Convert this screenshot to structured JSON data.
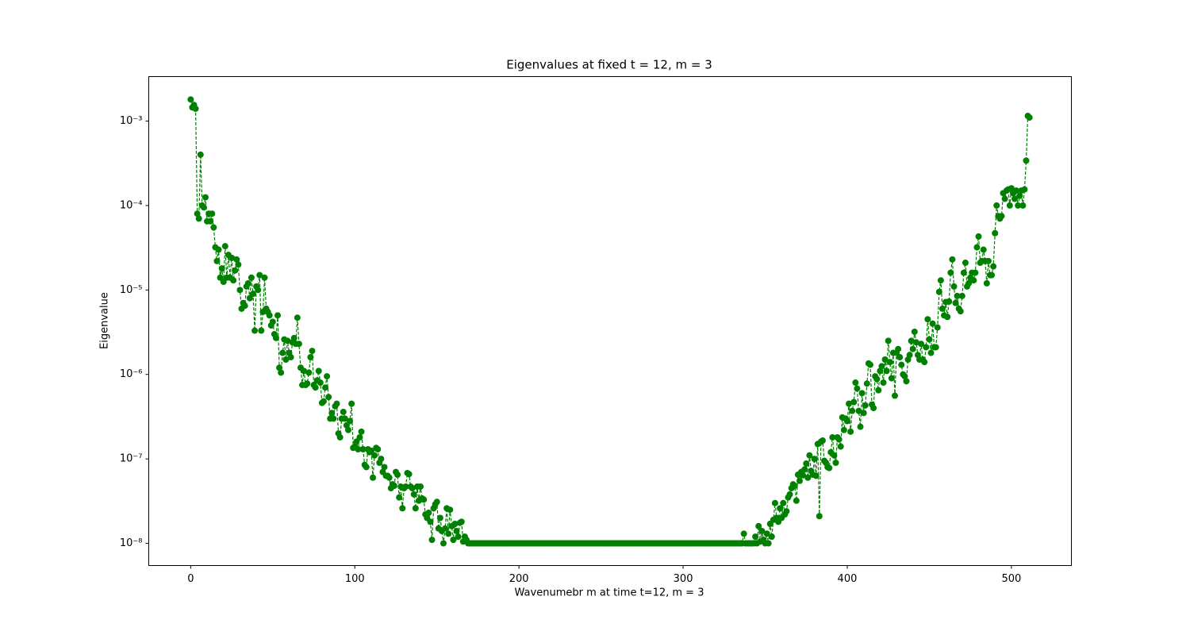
{
  "chart_data": {
    "type": "line",
    "title": "Eigenvalues at fixed t = 12, m = 3",
    "x_label": "Wavenumebr m at time t=12, m = 3",
    "y_label": "Eigenvalue",
    "y_scale": "log",
    "color": "#008000",
    "line_style": "dashed",
    "marker": "circle",
    "xlim": [
      -25.55,
      536.55
    ],
    "xticks": [
      0,
      100,
      200,
      300,
      400,
      500
    ],
    "ylim": [
      5.46e-09,
      0.00336
    ],
    "yticks": [
      {
        "value": 1e-08,
        "label": "10⁻⁸"
      },
      {
        "value": 1e-07,
        "label": "10⁻⁷"
      },
      {
        "value": 1e-06,
        "label": "10⁻⁶"
      },
      {
        "value": 1e-05,
        "label": "10⁻⁵"
      },
      {
        "value": 0.0001,
        "label": "10⁻⁴"
      },
      {
        "value": 0.001,
        "label": "10⁻³"
      }
    ],
    "values": [
      0.0018,
      0.00145,
      0.00155,
      0.0014,
      8e-05,
      7e-05,
      0.0004,
      0.0001,
      9.5e-05,
      0.000125,
      6.5e-05,
      8e-05,
      6.5e-05,
      8e-05,
      5.5e-05,
      3.2e-05,
      2.2e-05,
      3e-05,
      1.4e-05,
      1.8e-05,
      1.25e-05,
      3.3e-05,
      1.4e-05,
      2.6e-05,
      1.4e-05,
      2.4e-05,
      1.3e-05,
      1.7e-05,
      2.3e-05,
      2e-05,
      1e-05,
      6e-06,
      7e-06,
      6.5e-06,
      1.1e-05,
      1.2e-05,
      8e-06,
      1.4e-05,
      9e-06,
      3.3e-06,
      1.1e-05,
      1e-05,
      1.5e-05,
      3.3e-06,
      5.5e-06,
      1.4e-05,
      6e-06,
      5.5e-06,
      5e-06,
      3.8e-06,
      4.2e-06,
      3e-06,
      2.7e-06,
      5e-06,
      1.2e-06,
      1.05e-06,
      1.8e-06,
      2.6e-06,
      1.5e-06,
      2.5e-06,
      1.8e-06,
      1.6e-06,
      2.4e-06,
      2.7e-06,
      2.3e-06,
      4.7e-06,
      2.3e-06,
      1.2e-06,
      7.5e-07,
      1.1e-06,
      7.5e-07,
      7.8e-07,
      1.05e-06,
      1.6e-06,
      1.9e-06,
      7.5e-07,
      7e-07,
      8.5e-07,
      1.1e-06,
      8e-07,
      4.6e-07,
      4.8e-07,
      7e-07,
      9.5e-07,
      5.4e-07,
      3e-07,
      3.5e-07,
      3e-07,
      4.2e-07,
      4.5e-07,
      2e-07,
      1.8e-07,
      3e-07,
      3.6e-07,
      3e-07,
      2.5e-07,
      2.2e-07,
      2.8e-07,
      4.5e-07,
      1.35e-07,
      1.4e-07,
      1.6e-07,
      1.3e-07,
      1.8e-07,
      2.1e-07,
      1.3e-07,
      8.5e-08,
      8e-08,
      1.3e-07,
      1.2e-07,
      1.25e-07,
      6e-08,
      1.1e-07,
      1.35e-07,
      1.3e-07,
      9e-08,
      1e-07,
      7e-08,
      8e-08,
      6.3e-08,
      6.3e-08,
      6e-08,
      4.5e-08,
      5e-08,
      4.8e-08,
      7e-08,
      6.5e-08,
      3.5e-08,
      4.7e-08,
      2.6e-08,
      4.5e-08,
      4.7e-08,
      6.8e-08,
      6.6e-08,
      4.7e-08,
      4.5e-08,
      3.8e-08,
      2.6e-08,
      4.7e-08,
      3.2e-08,
      4.7e-08,
      3.4e-08,
      3.3e-08,
      2.2e-08,
      2e-08,
      2.3e-08,
      1.8e-08,
      1.1e-08,
      2.6e-08,
      2.9e-08,
      3.1e-08,
      1.5e-08,
      2e-08,
      1.4e-08,
      1e-08,
      1.5e-08,
      2.6e-08,
      1.3e-08,
      2.5e-08,
      1.6e-08,
      1.1e-08,
      1.7e-08,
      1.4e-08,
      1.2e-08,
      1.75e-08,
      1.8e-08,
      1.05e-08,
      1.2e-08,
      1.1e-08,
      1e-08,
      1e-08,
      1e-08,
      1e-08,
      1e-08,
      1e-08,
      1e-08,
      1e-08,
      1e-08,
      1e-08,
      1e-08,
      1e-08,
      1e-08,
      1e-08,
      1e-08,
      1e-08,
      1e-08,
      1e-08,
      1e-08,
      1e-08,
      1e-08,
      1e-08,
      1e-08,
      1e-08,
      1e-08,
      1e-08,
      1e-08,
      1e-08,
      1e-08,
      1e-08,
      1e-08,
      1e-08,
      1e-08,
      1e-08,
      1e-08,
      1e-08,
      1e-08,
      1e-08,
      1e-08,
      1e-08,
      1e-08,
      1e-08,
      1e-08,
      1e-08,
      1e-08,
      1e-08,
      1e-08,
      1e-08,
      1e-08,
      1e-08,
      1e-08,
      1e-08,
      1e-08,
      1e-08,
      1e-08,
      1e-08,
      1e-08,
      1e-08,
      1e-08,
      1e-08,
      1e-08,
      1e-08,
      1e-08,
      1e-08,
      1e-08,
      1e-08,
      1e-08,
      1e-08,
      1e-08,
      1e-08,
      1e-08,
      1e-08,
      1e-08,
      1e-08,
      1e-08,
      1e-08,
      1e-08,
      1e-08,
      1e-08,
      1e-08,
      1e-08,
      1e-08,
      1e-08,
      1e-08,
      1e-08,
      1e-08,
      1e-08,
      1e-08,
      1e-08,
      1e-08,
      1e-08,
      1e-08,
      1e-08,
      1e-08,
      1e-08,
      1e-08,
      1e-08,
      1e-08,
      1e-08,
      1e-08,
      1e-08,
      1e-08,
      1e-08,
      1e-08,
      1e-08,
      1e-08,
      1e-08,
      1e-08,
      1e-08,
      1e-08,
      1e-08,
      1e-08,
      1e-08,
      1e-08,
      1e-08,
      1e-08,
      1e-08,
      1e-08,
      1e-08,
      1e-08,
      1e-08,
      1e-08,
      1e-08,
      1e-08,
      1e-08,
      1e-08,
      1e-08,
      1e-08,
      1e-08,
      1e-08,
      1e-08,
      1e-08,
      1e-08,
      1e-08,
      1e-08,
      1e-08,
      1e-08,
      1e-08,
      1e-08,
      1e-08,
      1e-08,
      1e-08,
      1e-08,
      1e-08,
      1e-08,
      1e-08,
      1e-08,
      1e-08,
      1e-08,
      1e-08,
      1e-08,
      1e-08,
      1e-08,
      1e-08,
      1e-08,
      1e-08,
      1e-08,
      1e-08,
      1e-08,
      1e-08,
      1e-08,
      1e-08,
      1e-08,
      1e-08,
      1e-08,
      1e-08,
      1e-08,
      1e-08,
      1.3e-08,
      1e-08,
      1e-08,
      1e-08,
      1e-08,
      1e-08,
      1e-08,
      1.2e-08,
      1e-08,
      1.6e-08,
      1.05e-08,
      1.4e-08,
      1.1e-08,
      1e-08,
      1.3e-08,
      1e-08,
      1.7e-08,
      1.2e-08,
      1.9e-08,
      3e-08,
      2e-08,
      1.8e-08,
      2.6e-08,
      2e-08,
      3e-08,
      2.2e-08,
      2.4e-08,
      3.5e-08,
      3.8e-08,
      4.5e-08,
      5e-08,
      4.8e-08,
      3.2e-08,
      6.5e-08,
      5.5e-08,
      7e-08,
      6.4e-08,
      7.5e-08,
      8.8e-08,
      6e-08,
      1.1e-07,
      7.2e-08,
      6.5e-08,
      1e-07,
      6.3e-08,
      1.5e-07,
      2.1e-08,
      1.6e-07,
      1.65e-07,
      9.5e-08,
      9e-08,
      8e-08,
      7.8e-08,
      1.2e-07,
      1.8e-07,
      1.1e-07,
      9e-08,
      1.8e-07,
      1.7e-07,
      1.4e-07,
      3.1e-07,
      2.2e-07,
      3e-07,
      2.8e-07,
      4.5e-07,
      2.1e-07,
      3.7e-07,
      4.7e-07,
      8e-07,
      6.8e-07,
      3.7e-07,
      2.4e-07,
      6e-07,
      3.5e-07,
      4.3e-07,
      7.8e-07,
      1.35e-06,
      1.3e-06,
      4.4e-07,
      4e-07,
      9.5e-07,
      8.8e-07,
      6.5e-07,
      1.1e-06,
      1.25e-06,
      8e-07,
      1.5e-06,
      1.1e-06,
      2.5e-06,
      1.4e-06,
      9e-07,
      1.8e-06,
      5.6e-07,
      1.8e-06,
      2e-06,
      1.6e-06,
      1.3e-06,
      1e-06,
      9.5e-07,
      8.3e-07,
      1.5e-06,
      1.7e-06,
      2.5e-06,
      2e-06,
      3.2e-06,
      2.4e-06,
      1.7e-06,
      1.5e-06,
      2.3e-06,
      1.5e-06,
      1.4e-06,
      2.1e-06,
      4.5e-06,
      2.6e-06,
      1.8e-06,
      4e-06,
      2.1e-06,
      2.1e-06,
      3.6e-06,
      9.5e-06,
      1.3e-05,
      6e-06,
      5e-06,
      7.2e-06,
      4.8e-06,
      7.3e-06,
      1.6e-05,
      2.3e-05,
      1.1e-05,
      7e-06,
      8.5e-06,
      6e-06,
      5.6e-06,
      8.5e-06,
      1.6e-05,
      2.1e-05,
      1.1e-05,
      1.2e-05,
      1.4e-05,
      1.6e-05,
      1.3e-05,
      1.6e-05,
      3.2e-05,
      4.3e-05,
      2.1e-05,
      2.2e-05,
      3e-05,
      2.2e-05,
      1.2e-05,
      2.2e-05,
      1.5e-05,
      1.5e-05,
      1.9e-05,
      4.7e-05,
      0.0001,
      7.5e-05,
      7e-05,
      7.5e-05,
      0.00014,
      0.00012,
      0.00015,
      0.000155,
      0.0001,
      0.00016,
      0.00014,
      0.00012,
      0.00015,
      0.0001,
      0.00013,
      0.00015,
      0.0001,
      0.000155,
      0.00034,
      0.00115,
      0.0011
    ]
  }
}
